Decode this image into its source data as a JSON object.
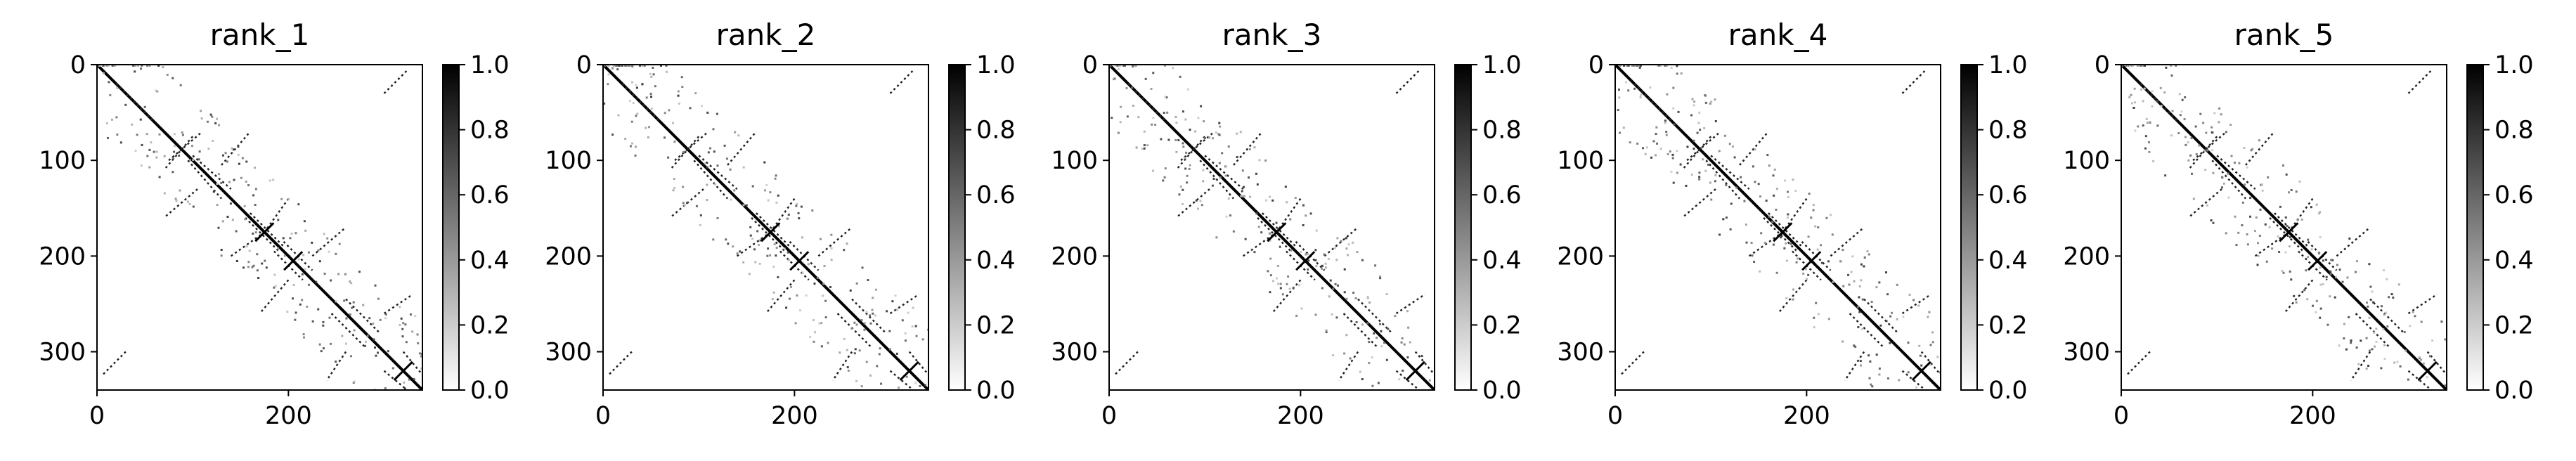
{
  "chart_data": [
    {
      "type": "heatmap",
      "title": "rank_1",
      "x_ticks": [
        "0",
        "200"
      ],
      "y_ticks": [
        "0",
        "100",
        "200",
        "300"
      ],
      "x_tick_values": [
        0,
        200
      ],
      "y_tick_values": [
        0,
        100,
        200,
        300
      ],
      "xlim": [
        0,
        340
      ],
      "ylim": [
        340,
        0
      ],
      "colorbar": {
        "ticks": [
          "0.0",
          "0.2",
          "0.4",
          "0.6",
          "0.8",
          "1.0"
        ],
        "range": [
          0,
          1
        ],
        "cmap": "gray_r"
      }
    },
    {
      "type": "heatmap",
      "title": "rank_2",
      "x_ticks": [
        "0",
        "200"
      ],
      "y_ticks": [
        "0",
        "100",
        "200",
        "300"
      ],
      "x_tick_values": [
        0,
        200
      ],
      "y_tick_values": [
        0,
        100,
        200,
        300
      ],
      "xlim": [
        0,
        340
      ],
      "ylim": [
        340,
        0
      ],
      "colorbar": {
        "ticks": [
          "0.0",
          "0.2",
          "0.4",
          "0.6",
          "0.8",
          "1.0"
        ],
        "range": [
          0,
          1
        ],
        "cmap": "gray_r"
      }
    },
    {
      "type": "heatmap",
      "title": "rank_3",
      "x_ticks": [
        "0",
        "200"
      ],
      "y_ticks": [
        "0",
        "100",
        "200",
        "300"
      ],
      "x_tick_values": [
        0,
        200
      ],
      "y_tick_values": [
        0,
        100,
        200,
        300
      ],
      "xlim": [
        0,
        340
      ],
      "ylim": [
        340,
        0
      ],
      "colorbar": {
        "ticks": [
          "0.0",
          "0.2",
          "0.4",
          "0.6",
          "0.8",
          "1.0"
        ],
        "range": [
          0,
          1
        ],
        "cmap": "gray_r"
      }
    },
    {
      "type": "heatmap",
      "title": "rank_4",
      "x_ticks": [
        "0",
        "200"
      ],
      "y_ticks": [
        "0",
        "100",
        "200",
        "300"
      ],
      "x_tick_values": [
        0,
        200
      ],
      "y_tick_values": [
        0,
        100,
        200,
        300
      ],
      "xlim": [
        0,
        340
      ],
      "ylim": [
        340,
        0
      ],
      "colorbar": {
        "ticks": [
          "0.0",
          "0.2",
          "0.4",
          "0.6",
          "0.8",
          "1.0"
        ],
        "range": [
          0,
          1
        ],
        "cmap": "gray_r"
      }
    },
    {
      "type": "heatmap",
      "title": "rank_5",
      "x_ticks": [
        "0",
        "200"
      ],
      "y_ticks": [
        "0",
        "100",
        "200",
        "300"
      ],
      "x_tick_values": [
        0,
        200
      ],
      "y_tick_values": [
        0,
        100,
        200,
        300
      ],
      "xlim": [
        0,
        340
      ],
      "ylim": [
        340,
        0
      ],
      "colorbar": {
        "ticks": [
          "0.0",
          "0.2",
          "0.4",
          "0.6",
          "0.8",
          "1.0"
        ],
        "range": [
          0,
          1
        ],
        "cmap": "gray_r"
      }
    }
  ],
  "structure": {
    "diagonal": [
      0,
      340
    ],
    "off_diagonal_segments": [
      [
        [
          20,
          20
        ],
        [
          60,
          60
        ]
      ],
      [
        [
          75,
          100
        ],
        [
          110,
          70
        ]
      ],
      [
        [
          100,
          95
        ],
        [
          140,
          130
        ]
      ],
      [
        [
          105,
          130
        ],
        [
          70,
          160
        ]
      ],
      [
        [
          160,
          155
        ],
        [
          195,
          190
        ]
      ],
      [
        [
          195,
          185
        ],
        [
          225,
          215
        ]
      ],
      [
        [
          140,
          200
        ],
        [
          175,
          175
        ]
      ],
      [
        [
          225,
          200
        ],
        [
          260,
          170
        ]
      ],
      [
        [
          260,
          245
        ],
        [
          295,
          280
        ]
      ],
      [
        [
          300,
          260
        ],
        [
          330,
          240
        ]
      ],
      [
        [
          320,
          300
        ],
        [
          345,
          330
        ]
      ],
      [
        [
          30,
          300
        ],
        [
          5,
          325
        ]
      ]
    ],
    "speckle_seed": 7
  }
}
